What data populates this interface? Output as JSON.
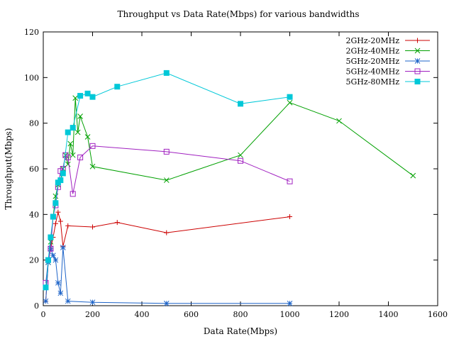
{
  "chart_data": {
    "type": "line",
    "title": "Throughput vs Data Rate(Mbps) for various bandwidths",
    "xlabel": "Data Rate(Mbps)",
    "ylabel": "Throughput(Mbps)",
    "xlim": [
      0,
      1600
    ],
    "ylim": [
      0,
      120
    ],
    "xticks": [
      0,
      200,
      400,
      600,
      800,
      1000,
      1200,
      1400,
      1600
    ],
    "yticks": [
      0,
      20,
      40,
      60,
      80,
      100,
      120
    ],
    "grid": false,
    "legend_position": "top-right",
    "series": [
      {
        "name": "2GHz-20MHz",
        "color": "#cc0000",
        "marker": "plus",
        "points": [
          [
            10,
            2
          ],
          [
            20,
            19
          ],
          [
            30,
            25
          ],
          [
            40,
            30
          ],
          [
            50,
            36
          ],
          [
            60,
            41
          ],
          [
            70,
            37
          ],
          [
            80,
            26
          ],
          [
            100,
            35
          ],
          [
            200,
            34.5
          ],
          [
            300,
            36.5
          ],
          [
            500,
            32
          ],
          [
            1000,
            39
          ]
        ]
      },
      {
        "name": "2GHz-40MHz",
        "color": "#00a000",
        "marker": "cross",
        "points": [
          [
            10,
            8
          ],
          [
            20,
            19
          ],
          [
            30,
            28
          ],
          [
            40,
            39
          ],
          [
            50,
            48
          ],
          [
            60,
            53
          ],
          [
            70,
            55
          ],
          [
            80,
            60
          ],
          [
            90,
            66
          ],
          [
            100,
            62
          ],
          [
            110,
            71
          ],
          [
            120,
            66
          ],
          [
            130,
            91
          ],
          [
            140,
            76
          ],
          [
            150,
            83
          ],
          [
            180,
            74
          ],
          [
            200,
            61
          ],
          [
            500,
            55
          ],
          [
            800,
            66
          ],
          [
            1000,
            89
          ],
          [
            1200,
            81
          ],
          [
            1500,
            57
          ]
        ]
      },
      {
        "name": "5GHz-20MHz",
        "color": "#1e64c8",
        "marker": "star",
        "points": [
          [
            10,
            2
          ],
          [
            20,
            19
          ],
          [
            30,
            25
          ],
          [
            40,
            22
          ],
          [
            50,
            20
          ],
          [
            60,
            10
          ],
          [
            70,
            5.5
          ],
          [
            80,
            25.5
          ],
          [
            100,
            2
          ],
          [
            200,
            1.5
          ],
          [
            500,
            1
          ],
          [
            1000,
            1
          ]
        ]
      },
      {
        "name": "5GHz-40MHz",
        "color": "#a020c0",
        "marker": "square-open",
        "points": [
          [
            10,
            10
          ],
          [
            20,
            20
          ],
          [
            30,
            25
          ],
          [
            40,
            39
          ],
          [
            50,
            44
          ],
          [
            60,
            52
          ],
          [
            70,
            59
          ],
          [
            80,
            60
          ],
          [
            90,
            66
          ],
          [
            100,
            65
          ],
          [
            120,
            49
          ],
          [
            150,
            65
          ],
          [
            200,
            70
          ],
          [
            500,
            67.5
          ],
          [
            800,
            63.5
          ],
          [
            1000,
            54.5
          ]
        ]
      },
      {
        "name": "5GHz-80MHz",
        "color": "#00c8d8",
        "marker": "square-filled",
        "points": [
          [
            10,
            8
          ],
          [
            20,
            20
          ],
          [
            30,
            30
          ],
          [
            40,
            39
          ],
          [
            50,
            45
          ],
          [
            60,
            54
          ],
          [
            70,
            55
          ],
          [
            80,
            58
          ],
          [
            100,
            76
          ],
          [
            120,
            78
          ],
          [
            150,
            92
          ],
          [
            180,
            93
          ],
          [
            200,
            91.5
          ],
          [
            300,
            96
          ],
          [
            500,
            102
          ],
          [
            800,
            88.5
          ],
          [
            1000,
            91.5
          ]
        ]
      }
    ]
  }
}
